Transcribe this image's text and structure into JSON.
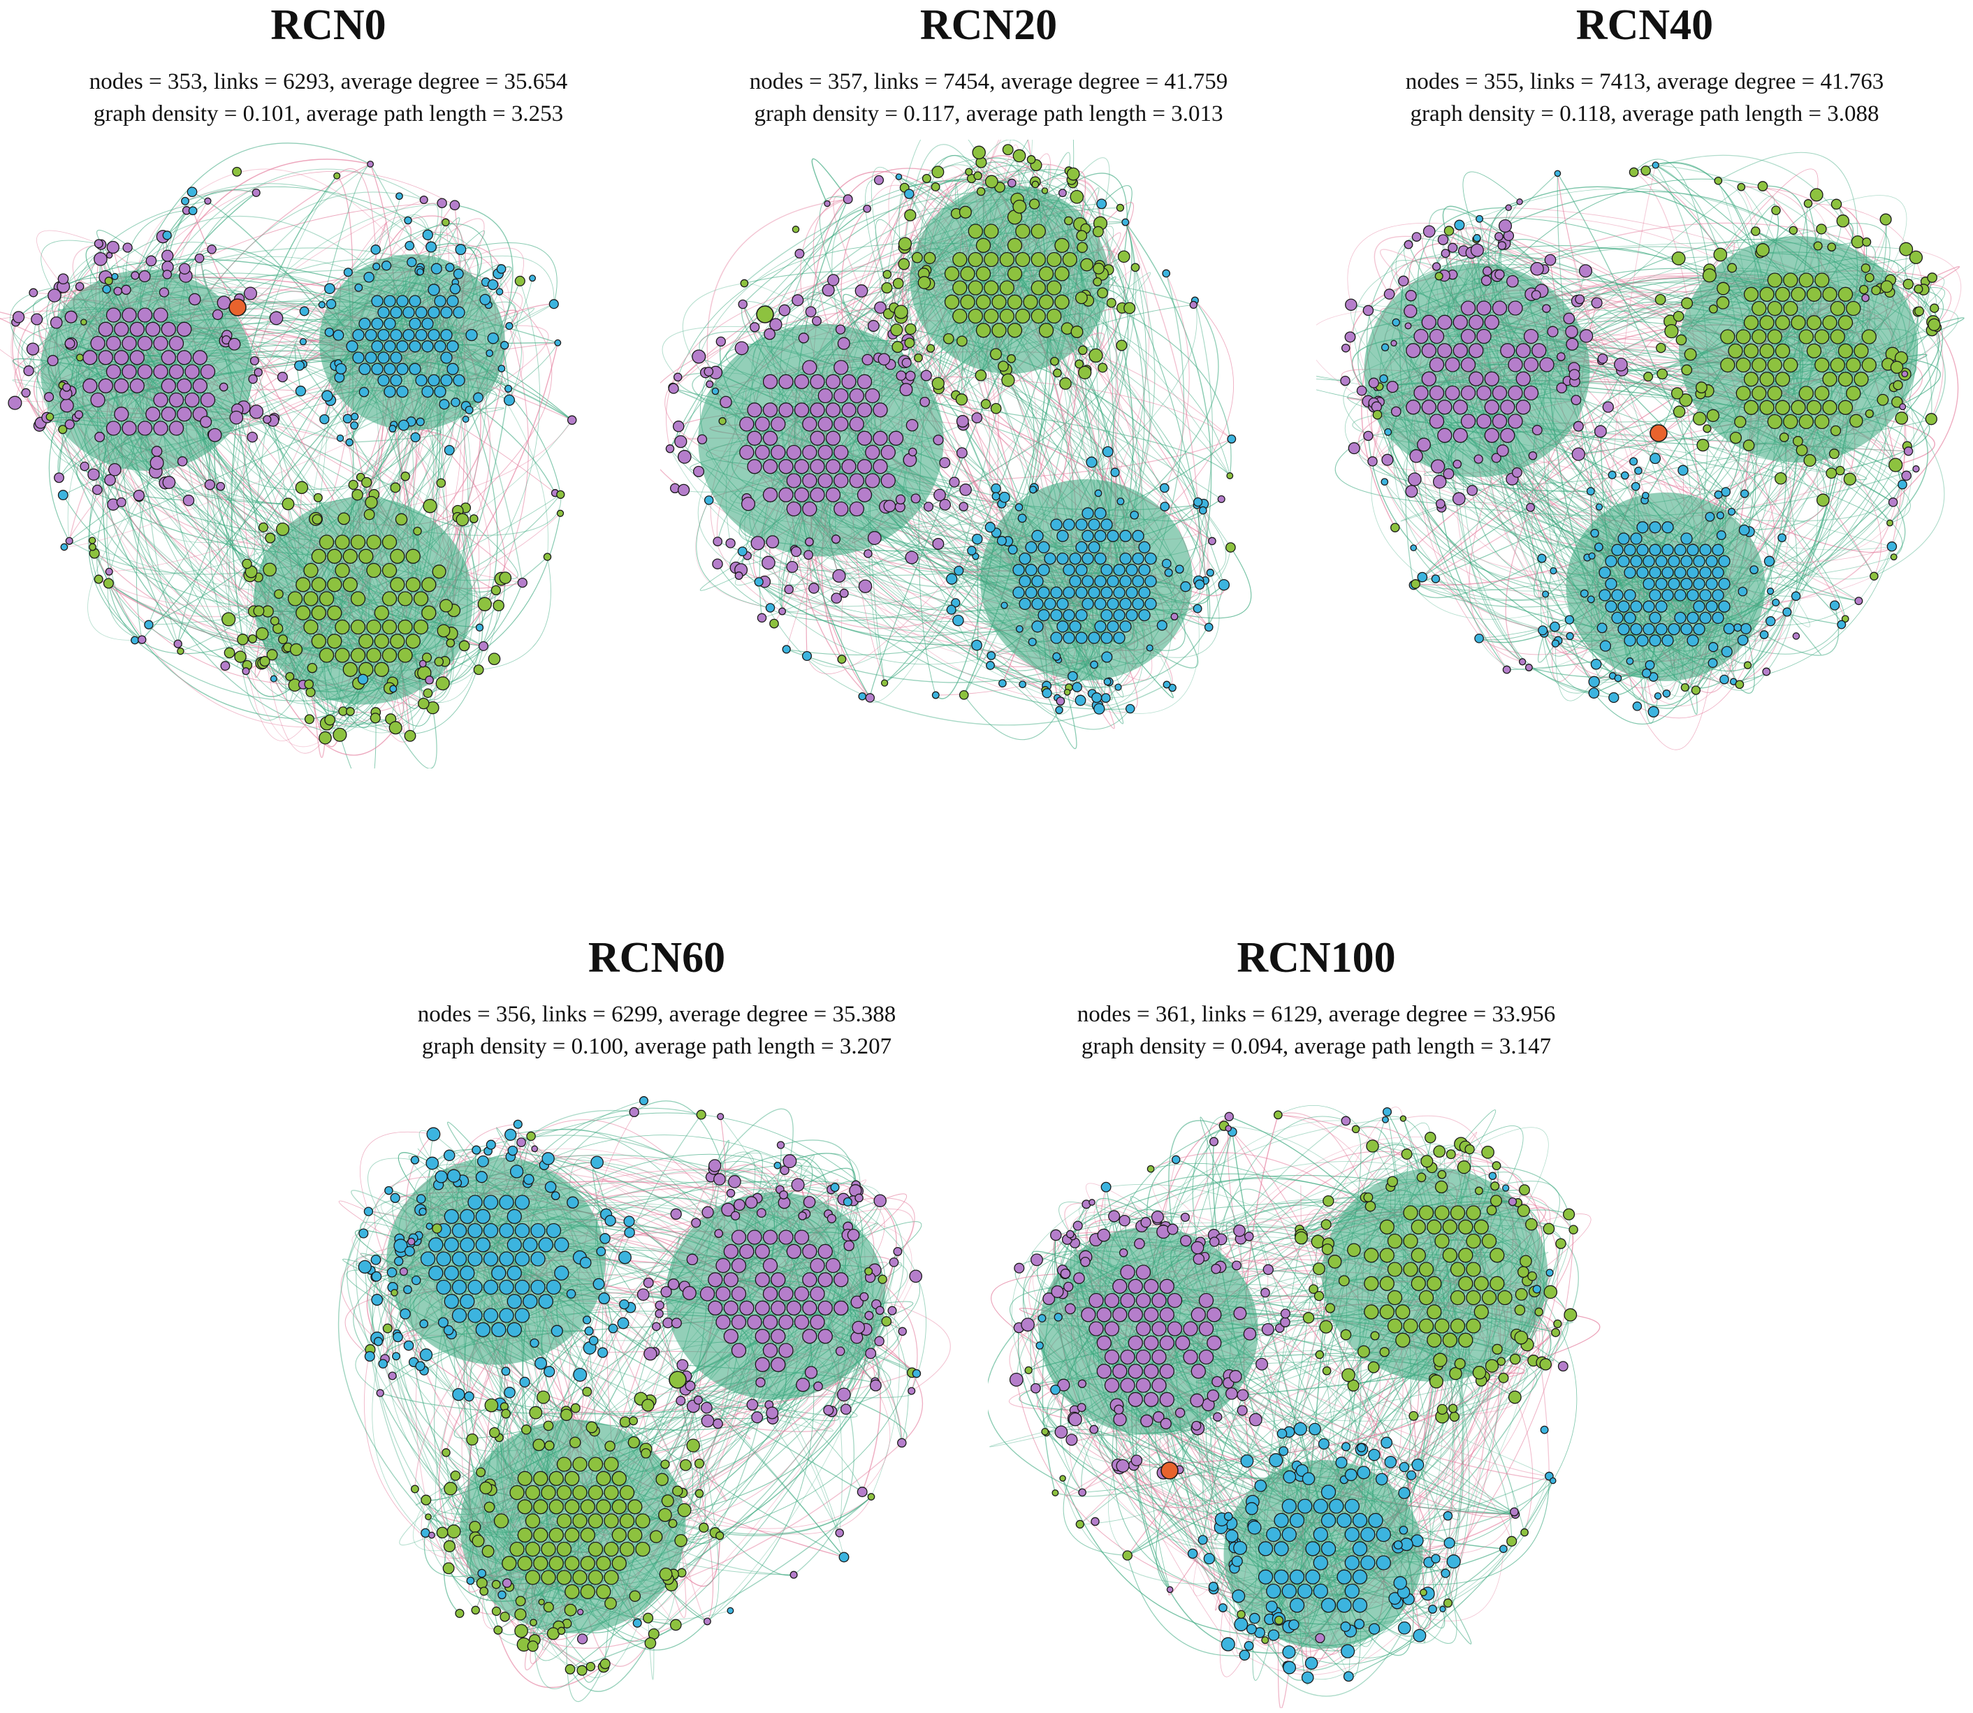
{
  "colors": {
    "positive_link": "#3aa87e",
    "negative_link": "#e37a9b",
    "module_purple": "#b57ecb",
    "module_green": "#8dc23f",
    "module_blue": "#3cb4df",
    "module_orange": "#e8632d",
    "node_stroke": "#1a1a1a"
  },
  "panels": [
    {
      "id": "rcn0",
      "title": "RCN0",
      "stats_line1": "nodes = 353, links = 6293, average degree = 35.654",
      "stats_line2": "graph density = 0.101, average path length = 3.253",
      "modules": [
        {
          "color": "purple",
          "size": "large"
        },
        {
          "color": "blue",
          "size": "medium"
        },
        {
          "color": "green",
          "size": "large"
        }
      ],
      "hub_color": "orange"
    },
    {
      "id": "rcn20",
      "title": "RCN20",
      "stats_line1": "nodes = 357, links = 7454, average degree = 41.759",
      "stats_line2": "graph density = 0.117, average path length = 3.013",
      "modules": [
        {
          "color": "purple",
          "size": "large"
        },
        {
          "color": "green",
          "size": "large"
        },
        {
          "color": "blue",
          "size": "medium"
        }
      ],
      "hub_color": "green"
    },
    {
      "id": "rcn40",
      "title": "RCN40",
      "stats_line1": "nodes = 355, links = 7413, average degree = 41.763",
      "stats_line2": "graph density = 0.118, average path length = 3.088",
      "modules": [
        {
          "color": "purple",
          "size": "large"
        },
        {
          "color": "green",
          "size": "large"
        },
        {
          "color": "blue",
          "size": "medium"
        }
      ],
      "hub_color": "orange"
    },
    {
      "id": "rcn60",
      "title": "RCN60",
      "stats_line1": "nodes = 356, links = 6299, average degree = 35.388",
      "stats_line2": "graph density = 0.100, average path length = 3.207",
      "modules": [
        {
          "color": "blue",
          "size": "large"
        },
        {
          "color": "purple",
          "size": "large"
        },
        {
          "color": "green",
          "size": "large"
        }
      ],
      "hub_color": "green"
    },
    {
      "id": "rcn100",
      "title": "RCN100",
      "stats_line1": "nodes = 361, links = 6129, average degree = 33.956",
      "stats_line2": "graph density = 0.094, average path length = 3.147",
      "modules": [
        {
          "color": "purple",
          "size": "large"
        },
        {
          "color": "green",
          "size": "large"
        },
        {
          "color": "blue",
          "size": "large"
        }
      ],
      "hub_color": "orange"
    }
  ]
}
